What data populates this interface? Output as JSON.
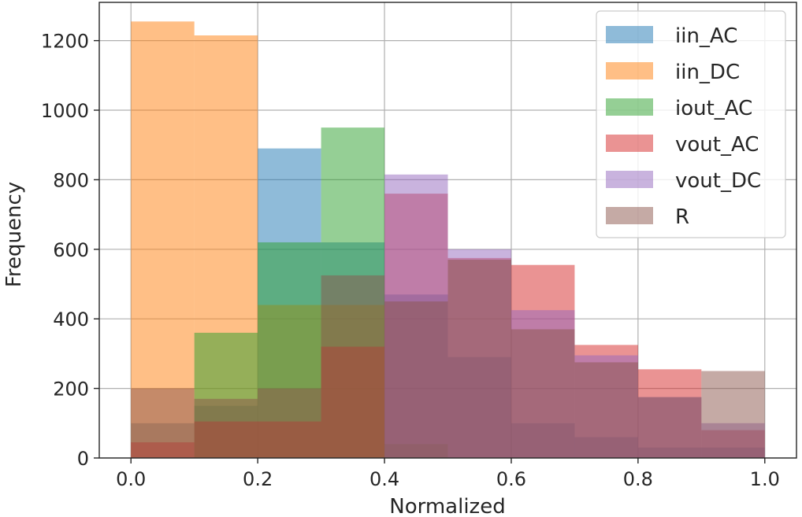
{
  "chart_data": {
    "type": "histogram",
    "title": "",
    "xlabel": "Normalized",
    "ylabel": "Frequency",
    "xlim": [
      -0.05,
      1.05
    ],
    "ylim": [
      0,
      1310
    ],
    "grid": true,
    "legend_position": "top-right",
    "bin_edges": [
      0.0,
      0.1,
      0.2,
      0.3,
      0.4,
      0.5,
      0.6,
      0.7,
      0.8,
      0.9,
      1.0
    ],
    "x_ticks": [
      0.0,
      0.2,
      0.4,
      0.6,
      0.8,
      1.0
    ],
    "x_tick_labels": [
      "0.0",
      "0.2",
      "0.4",
      "0.6",
      "0.8",
      "1.0"
    ],
    "y_ticks": [
      0,
      200,
      400,
      600,
      800,
      1000,
      1200
    ],
    "y_tick_labels": [
      "0",
      "200",
      "400",
      "600",
      "800",
      "1000",
      "1200"
    ],
    "series": [
      {
        "name": "iin_AC",
        "color": "#1f77b4",
        "values": [
          100,
          150,
          890,
          620,
          470,
          290,
          100,
          60,
          30,
          30
        ]
      },
      {
        "name": "iin_DC",
        "color": "#ff7f0e",
        "values": [
          1255,
          1215,
          440,
          440,
          0,
          0,
          0,
          0,
          0,
          0
        ]
      },
      {
        "name": "iout_AC",
        "color": "#2ca02c",
        "values": [
          0,
          360,
          620,
          950,
          40,
          0,
          0,
          0,
          0,
          0
        ]
      },
      {
        "name": "vout_AC",
        "color": "#d62728",
        "values": [
          45,
          105,
          105,
          320,
          760,
          575,
          555,
          325,
          255,
          80
        ]
      },
      {
        "name": "vout_DC",
        "color": "#9467bd",
        "values": [
          0,
          0,
          0,
          0,
          815,
          600,
          425,
          295,
          175,
          100
        ]
      },
      {
        "name": "R",
        "color": "#8c564b",
        "values": [
          200,
          170,
          200,
          525,
          450,
          570,
          370,
          275,
          175,
          250
        ]
      }
    ],
    "alpha": 0.5
  }
}
